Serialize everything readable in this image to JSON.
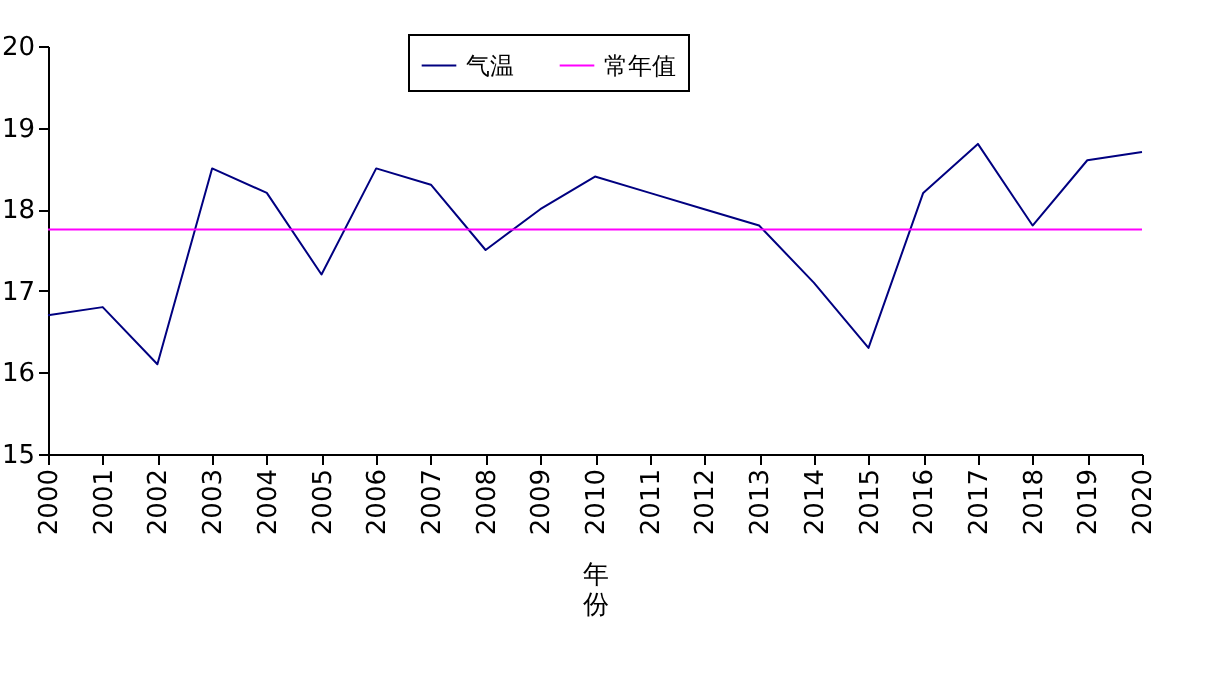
{
  "chart_data": {
    "type": "line",
    "xlabel": "年份",
    "x": [
      2000,
      2001,
      2002,
      2003,
      2004,
      2005,
      2006,
      2007,
      2008,
      2009,
      2010,
      2011,
      2012,
      2013,
      2014,
      2015,
      2016,
      2017,
      2018,
      2019,
      2020
    ],
    "series": [
      {
        "name": "气温",
        "color": "#000080",
        "values": [
          16.7,
          16.8,
          16.1,
          18.5,
          18.2,
          17.2,
          18.5,
          18.3,
          17.5,
          18.0,
          18.4,
          18.2,
          18.0,
          17.8,
          17.1,
          16.3,
          18.2,
          18.8,
          17.8,
          18.6,
          18.7
        ]
      }
    ],
    "ref_lines": [
      {
        "axis": "y",
        "value": 17.75,
        "label": "常年值",
        "color": "#ff00ff"
      }
    ],
    "xlim": [
      2000,
      2020
    ],
    "xticks": [
      2000,
      2001,
      2002,
      2003,
      2004,
      2005,
      2006,
      2007,
      2008,
      2009,
      2010,
      2011,
      2012,
      2013,
      2014,
      2015,
      2016,
      2017,
      2018,
      2019,
      2020
    ],
    "ylim": [
      15,
      20
    ],
    "yticks": [
      15,
      16,
      17,
      18,
      19,
      20
    ],
    "grid": false,
    "legend": "top",
    "marker": "none",
    "line_style": "solid"
  }
}
